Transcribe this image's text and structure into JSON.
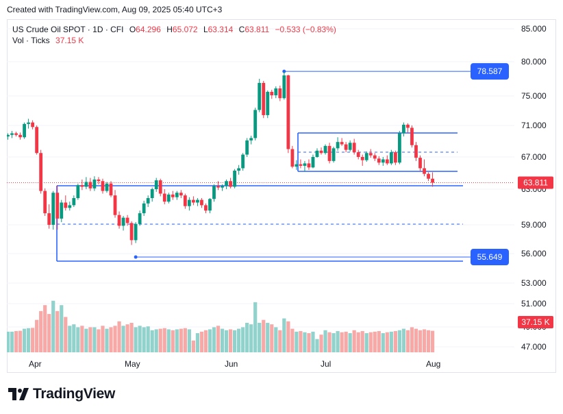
{
  "header": {
    "created_text": "Created with TradingView.com, Aug 09, 2025 05:40 UTC+3"
  },
  "legend": {
    "symbol": "US Crude Oil SPOT · 1D · CFI",
    "open_label": "O",
    "open": "64.296",
    "high_label": "H",
    "high": "65.072",
    "low_label": "L",
    "low": "63.314",
    "close_label": "C",
    "close": "63.811",
    "change": "−0.533 (−0.83%)",
    "vol_label": "Vol · Ticks",
    "vol_value": "37.15 K"
  },
  "brand": {
    "name": "TradingView"
  },
  "colors": {
    "up": "#089981",
    "down": "#f23645",
    "vol_up": "#92d2cc",
    "vol_down": "#f7a9a7",
    "line": "#2962ff",
    "badge": "#2962ff",
    "price_badge": "#f23645"
  },
  "chart_data": {
    "type": "candlestick",
    "y_axis": {
      "min": 47,
      "max": 85,
      "ticks": [
        "85.000",
        "80.000",
        "75.000",
        "71.000",
        "67.000",
        "63.000",
        "59.000",
        "56.000",
        "53.000",
        "51.000",
        "49.000",
        "47.000"
      ]
    },
    "x_labels": [
      "Apr",
      "May",
      "Jun",
      "Jul",
      "Aug"
    ],
    "current_price_label": "63.811",
    "volume_label": "37.15 K",
    "level_labels": {
      "upper": "78.587",
      "lower": "55.649"
    },
    "candles": [
      [
        69.6,
        70.0,
        69.2,
        69.8
      ],
      [
        69.8,
        70.3,
        69.4,
        70.0
      ],
      [
        70.0,
        70.2,
        69.6,
        69.8
      ],
      [
        69.8,
        70.1,
        69.2,
        69.5
      ],
      [
        69.5,
        71.4,
        69.3,
        71.2
      ],
      [
        71.2,
        71.9,
        70.6,
        71.4
      ],
      [
        71.4,
        71.7,
        70.5,
        70.8
      ],
      [
        70.8,
        71.0,
        67.3,
        67.5
      ],
      [
        67.5,
        67.9,
        62.5,
        62.8
      ],
      [
        62.8,
        63.1,
        60.0,
        60.3
      ],
      [
        60.3,
        61.3,
        58.6,
        59.0
      ],
      [
        59.0,
        62.8,
        58.5,
        62.6
      ],
      [
        62.6,
        63.5,
        58.5,
        59.7
      ],
      [
        59.7,
        61.8,
        59.3,
        61.5
      ],
      [
        61.5,
        62.3,
        60.6,
        60.9
      ],
      [
        60.9,
        61.6,
        60.6,
        61.2
      ],
      [
        61.2,
        62.3,
        61.0,
        62.0
      ],
      [
        62.0,
        63.7,
        61.8,
        63.5
      ],
      [
        63.5,
        64.2,
        62.9,
        63.3
      ],
      [
        63.3,
        64.5,
        63.0,
        63.9
      ],
      [
        63.9,
        64.4,
        62.8,
        63.1
      ],
      [
        63.1,
        64.6,
        62.8,
        64.2
      ],
      [
        64.2,
        64.5,
        63.6,
        64.0
      ],
      [
        64.0,
        64.3,
        62.5,
        62.8
      ],
      [
        62.8,
        63.9,
        62.6,
        63.7
      ],
      [
        63.7,
        64.0,
        62.1,
        62.3
      ],
      [
        62.3,
        62.9,
        59.8,
        60.1
      ],
      [
        60.1,
        60.5,
        58.6,
        58.9
      ],
      [
        58.9,
        60.0,
        58.4,
        59.8
      ],
      [
        59.8,
        60.1,
        58.9,
        59.2
      ],
      [
        59.2,
        59.4,
        56.9,
        57.4
      ],
      [
        57.4,
        59.3,
        57.1,
        59.1
      ],
      [
        59.1,
        60.6,
        58.9,
        60.3
      ],
      [
        60.3,
        61.7,
        60.0,
        61.4
      ],
      [
        61.4,
        62.3,
        61.0,
        62.0
      ],
      [
        62.0,
        63.2,
        61.6,
        63.0
      ],
      [
        63.0,
        64.4,
        62.7,
        64.1
      ],
      [
        64.1,
        64.3,
        62.2,
        62.5
      ],
      [
        62.5,
        63.0,
        61.3,
        61.6
      ],
      [
        61.6,
        62.6,
        61.4,
        62.4
      ],
      [
        62.4,
        62.8,
        61.8,
        62.1
      ],
      [
        62.1,
        62.8,
        61.8,
        62.6
      ],
      [
        62.6,
        62.9,
        62.0,
        62.3
      ],
      [
        62.3,
        62.5,
        60.8,
        61.1
      ],
      [
        61.1,
        62.1,
        60.6,
        61.8
      ],
      [
        61.8,
        62.2,
        61.2,
        61.5
      ],
      [
        61.5,
        62.0,
        61.1,
        61.8
      ],
      [
        61.8,
        62.0,
        60.9,
        61.2
      ],
      [
        61.2,
        61.4,
        60.3,
        60.6
      ],
      [
        60.6,
        62.0,
        60.3,
        61.9
      ],
      [
        61.9,
        63.6,
        61.6,
        63.4
      ],
      [
        63.4,
        64.0,
        62.9,
        63.2
      ],
      [
        63.2,
        63.6,
        62.8,
        63.4
      ],
      [
        63.4,
        64.2,
        63.0,
        64.0
      ],
      [
        64.0,
        64.4,
        63.1,
        63.3
      ],
      [
        63.3,
        65.5,
        63.1,
        65.3
      ],
      [
        65.3,
        66.0,
        64.8,
        65.6
      ],
      [
        65.6,
        67.5,
        65.3,
        67.3
      ],
      [
        67.3,
        69.4,
        67.0,
        69.1
      ],
      [
        69.1,
        69.7,
        68.6,
        69.4
      ],
      [
        69.4,
        73.4,
        69.1,
        73.1
      ],
      [
        73.1,
        77.5,
        72.8,
        76.9
      ],
      [
        76.9,
        77.2,
        72.0,
        72.4
      ],
      [
        72.4,
        75.8,
        72.0,
        75.6
      ],
      [
        75.6,
        75.9,
        74.6,
        75.1
      ],
      [
        75.1,
        76.4,
        74.7,
        76.1
      ],
      [
        76.1,
        76.5,
        74.3,
        74.7
      ],
      [
        74.7,
        78.6,
        74.5,
        78.0
      ],
      [
        78.0,
        78.1,
        67.5,
        68.0
      ],
      [
        68.0,
        68.4,
        65.6,
        65.8
      ],
      [
        65.8,
        66.6,
        65.4,
        66.1
      ],
      [
        66.1,
        66.7,
        65.6,
        65.9
      ],
      [
        65.9,
        66.5,
        65.2,
        66.2
      ],
      [
        66.2,
        66.7,
        65.4,
        65.7
      ],
      [
        65.7,
        67.3,
        65.6,
        67.0
      ],
      [
        67.0,
        68.1,
        66.9,
        67.8
      ],
      [
        67.8,
        68.2,
        67.3,
        67.5
      ],
      [
        67.5,
        68.6,
        67.3,
        68.4
      ],
      [
        68.4,
        68.8,
        66.2,
        66.5
      ],
      [
        66.5,
        68.3,
        66.3,
        68.1
      ],
      [
        68.1,
        69.5,
        67.8,
        68.9
      ],
      [
        68.9,
        69.4,
        68.4,
        68.6
      ],
      [
        68.6,
        68.9,
        67.6,
        67.9
      ],
      [
        67.9,
        69.1,
        67.7,
        68.8
      ],
      [
        68.8,
        69.3,
        67.3,
        67.6
      ],
      [
        67.6,
        67.9,
        66.7,
        67.0
      ],
      [
        67.0,
        67.3,
        65.9,
        66.6
      ],
      [
        66.6,
        67.7,
        66.4,
        67.5
      ],
      [
        67.5,
        68.0,
        66.9,
        67.2
      ],
      [
        67.2,
        67.5,
        66.5,
        66.8
      ],
      [
        66.8,
        67.1,
        66.0,
        66.3
      ],
      [
        66.3,
        67.0,
        65.9,
        66.7
      ],
      [
        66.7,
        67.2,
        66.0,
        66.2
      ],
      [
        66.2,
        67.9,
        66.0,
        67.6
      ],
      [
        67.6,
        67.8,
        66.0,
        66.3
      ],
      [
        66.3,
        70.3,
        66.1,
        70.0
      ],
      [
        70.0,
        71.4,
        69.6,
        71.1
      ],
      [
        71.1,
        71.3,
        70.1,
        70.7
      ],
      [
        70.7,
        71.0,
        68.2,
        68.5
      ],
      [
        68.5,
        68.9,
        66.5,
        66.9
      ],
      [
        66.9,
        67.2,
        65.3,
        65.6
      ],
      [
        65.6,
        66.7,
        64.6,
        64.9
      ],
      [
        64.9,
        65.1,
        64.0,
        64.3
      ],
      [
        64.3,
        65.1,
        63.3,
        63.8
      ]
    ],
    "volume": [
      37.0,
      37.0,
      37.2,
      37.3,
      38.0,
      38.2,
      38.3,
      41.0,
      44.0,
      46.0,
      43.0,
      47.5,
      44.0,
      46.0,
      42.0,
      39.0,
      39.5,
      38.5,
      39.0,
      38.0,
      38.5,
      38.5,
      37.8,
      39.0,
      38.0,
      38.5,
      39.0,
      40.5,
      39.0,
      39.5,
      40.0,
      38.5,
      39.0,
      38.5,
      38.8,
      37.5,
      37.8,
      38.0,
      38.2,
      37.8,
      37.5,
      37.8,
      38.0,
      38.2,
      37.8,
      34.0,
      36.5,
      37.0,
      37.5,
      37.8,
      38.5,
      39.0,
      38.0,
      37.5,
      37.8,
      37.5,
      38.0,
      38.5,
      40.0,
      39.5,
      47.0,
      40.0,
      41.0,
      40.0,
      39.5,
      38.5,
      37.5,
      41.5,
      40.5,
      38.0,
      37.0,
      37.2,
      36.8,
      36.5,
      37.0,
      34.5,
      36.0,
      37.5,
      36.8,
      36.5,
      37.2,
      36.8,
      37.0,
      36.5,
      37.5,
      36.8,
      37.2,
      36.5,
      36.8,
      37.0,
      37.2,
      36.5,
      36.8,
      37.0,
      37.2,
      37.5,
      38.0,
      37.5,
      38.5,
      38.0,
      37.5,
      37.8,
      37.5,
      37.3
    ],
    "levels": {
      "upper": 78.587,
      "lower": 55.649
    }
  }
}
